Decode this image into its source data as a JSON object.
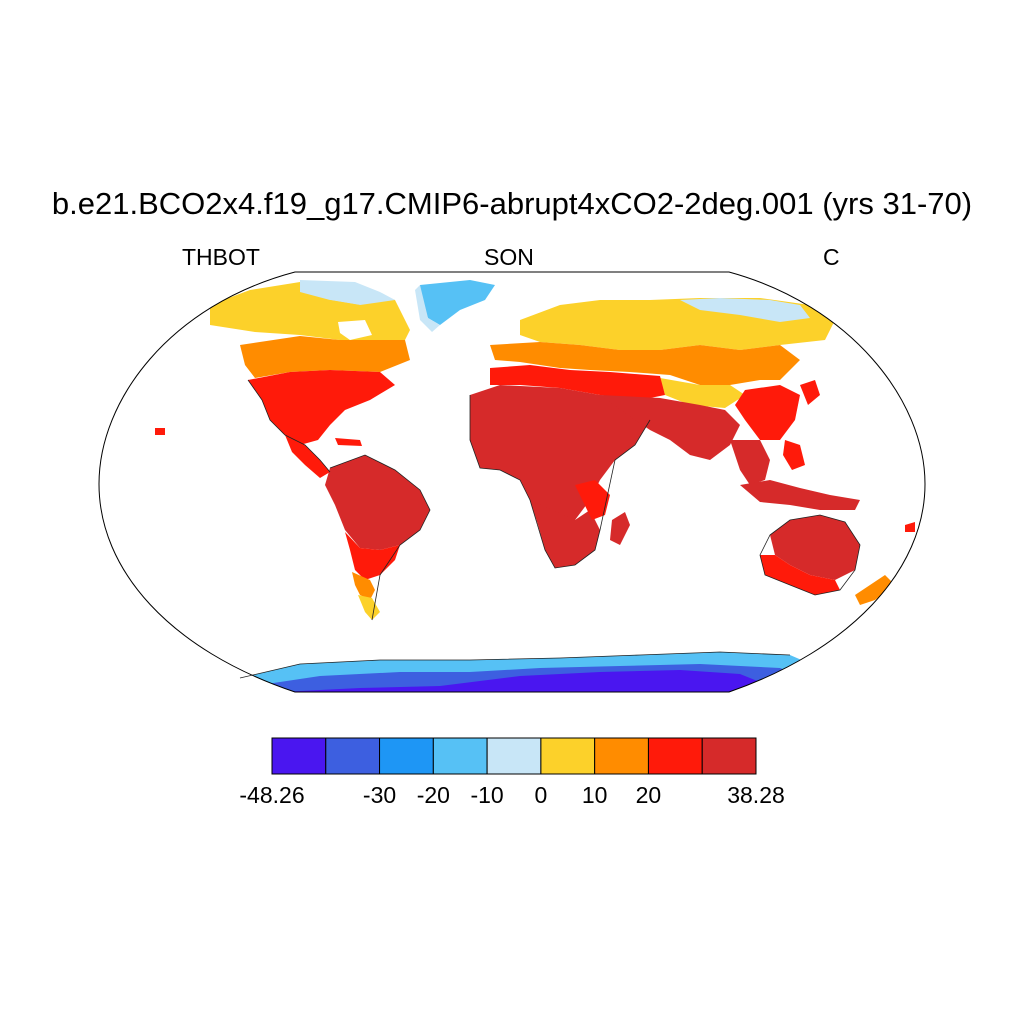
{
  "header": {
    "title": "b.e21.BCO2x4.f19_g17.CMIP6-abrupt4xCO2-2deg.001 (yrs 31-70)",
    "left": "THBOT",
    "center": "SON",
    "right": "C"
  },
  "map": {
    "projection": "Robinson",
    "variable": "THBOT",
    "season": "SON",
    "units": "C",
    "land_only": true,
    "coastlines": true
  },
  "colorbar": {
    "colors": [
      "#4a16f0",
      "#3d5fe0",
      "#1e96f5",
      "#56c1f5",
      "#c8e6f7",
      "#fcd12a",
      "#ff8c00",
      "#ff1a0a",
      "#d62a2a"
    ],
    "boundaries": [
      -48.26,
      -40,
      -30,
      -20,
      -10,
      0,
      10,
      20,
      30,
      38.28
    ],
    "labels": [
      {
        "text": "-48.26",
        "at": 0
      },
      {
        "text": "-30",
        "at": 2
      },
      {
        "text": "-20",
        "at": 3
      },
      {
        "text": "-10",
        "at": 4
      },
      {
        "text": "0",
        "at": 5
      },
      {
        "text": "10",
        "at": 6
      },
      {
        "text": "20",
        "at": 7
      },
      {
        "text": "38.28",
        "at": 9
      }
    ]
  }
}
